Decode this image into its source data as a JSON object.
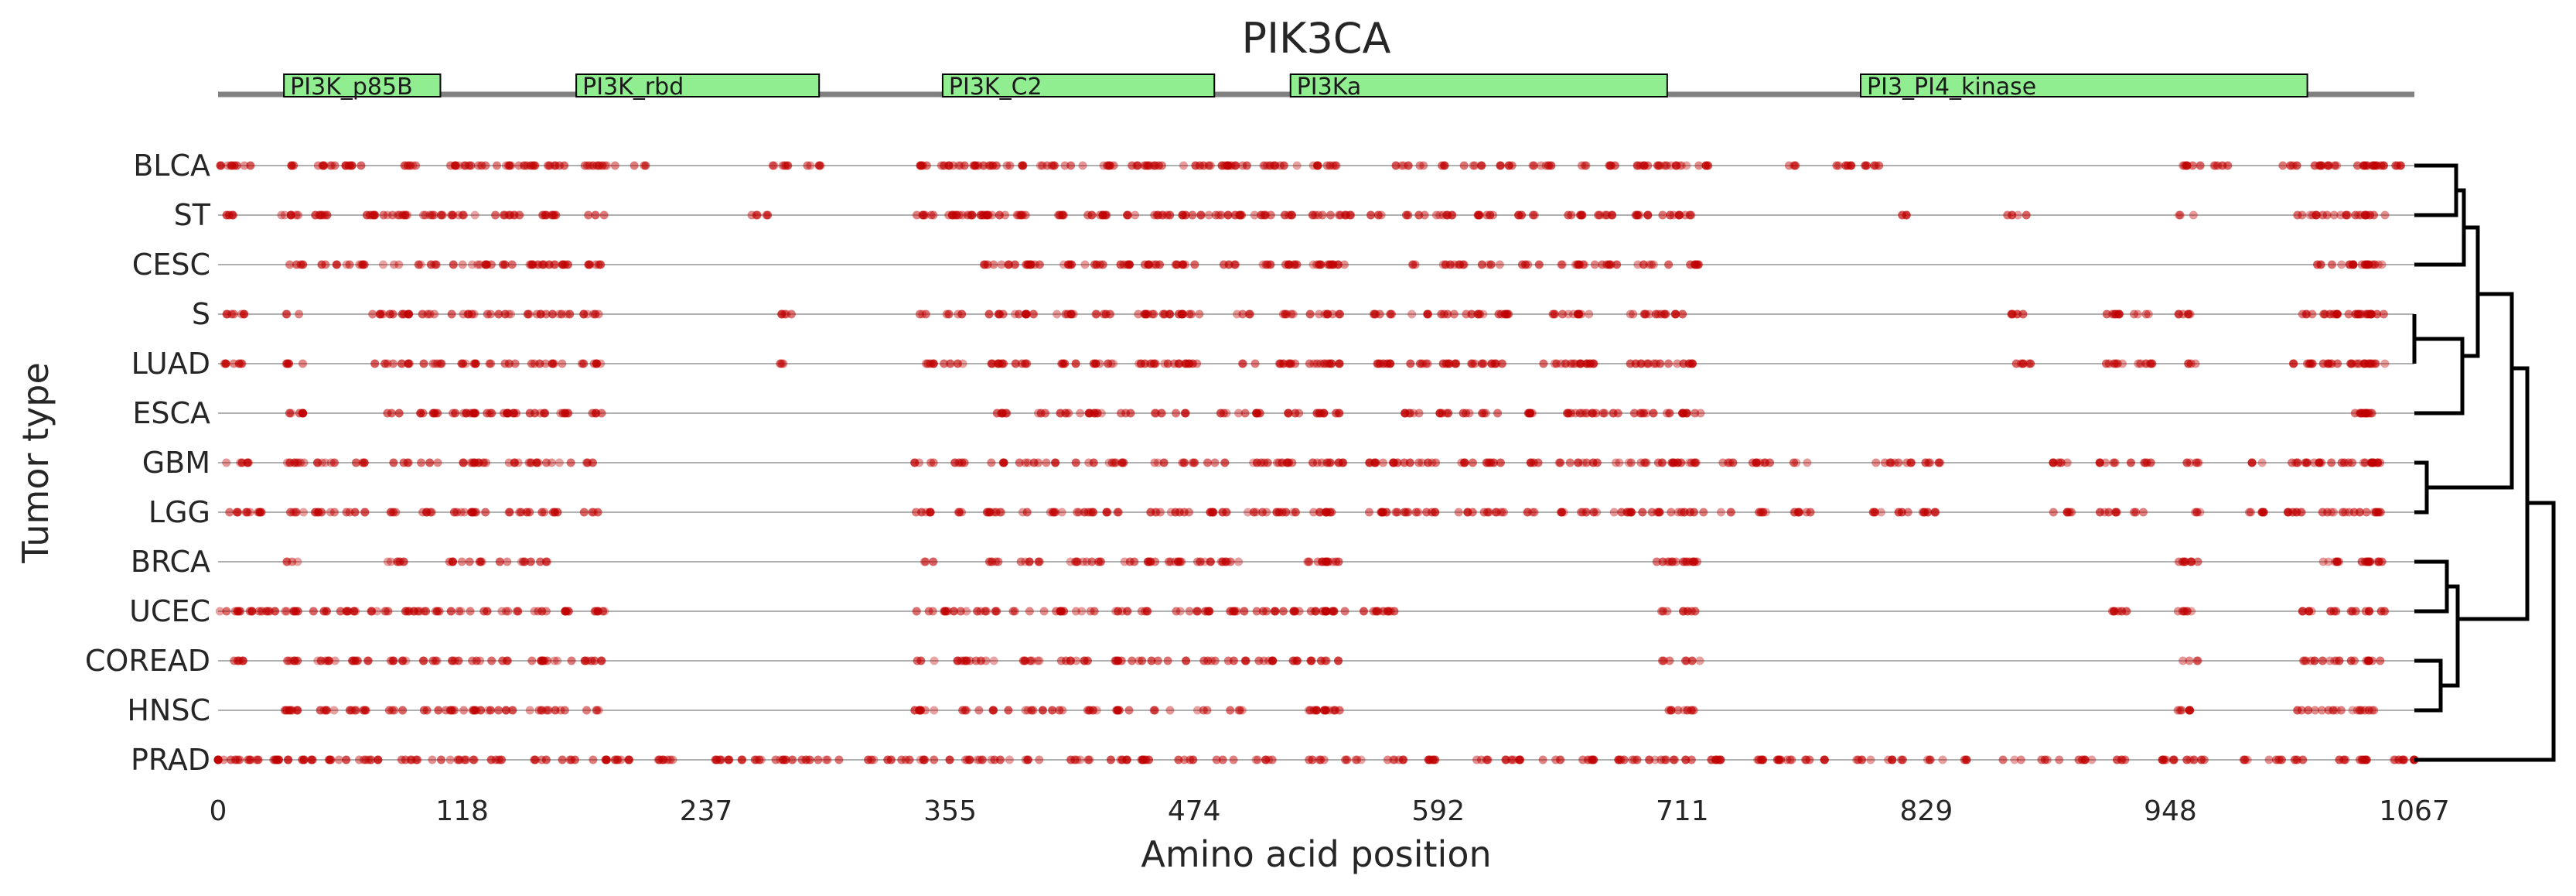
{
  "colors": {
    "mutation": "#c00000",
    "domain_fill": "#90ee90",
    "protein_track": "#808080",
    "row_line": "#b0b0b0",
    "dendrogram": "#000000"
  },
  "chart_data": {
    "type": "scatter",
    "title": "PIK3CA",
    "xlabel": "Amino acid position",
    "ylabel": "Tumor type",
    "xlim": [
      0,
      1067
    ],
    "xticks": [
      "0",
      "118",
      "237",
      "355",
      "474",
      "592",
      "711",
      "829",
      "948",
      "1067"
    ],
    "domains": [
      {
        "name": "PI3K_p85B",
        "start": 32,
        "end": 108
      },
      {
        "name": "PI3K_rbd",
        "start": 174,
        "end": 292
      },
      {
        "name": "PI3K_C2",
        "start": 352,
        "end": 484
      },
      {
        "name": "PI3Ka",
        "start": 521,
        "end": 704
      },
      {
        "name": "PI3_PI4_kinase",
        "start": 798,
        "end": 1015
      }
    ],
    "tumor_types": [
      "BLCA",
      "ST",
      "CESC",
      "S",
      "LUAD",
      "ESCA",
      "GBM",
      "LGG",
      "BRCA",
      "UCEC",
      "COREAD",
      "HNSC",
      "PRAD"
    ],
    "rows": [
      {
        "name": "BLCA",
        "hotspots": [
          3,
          12,
          37,
          52,
          66,
          93,
          115,
          125,
          138,
          151,
          164,
          182,
          189,
          205,
          272,
          290,
          343,
          356,
          363,
          374,
          387,
          403,
          416,
          432,
          447,
          455,
          474,
          486,
          495,
          512,
          520,
          537,
          544,
          572,
          581,
          596,
          610,
          624,
          643,
          660,
          677,
          690,
          704,
          710,
          720,
          765,
          790,
          803,
          958,
          972,
          1005,
          1017,
          1027,
          1043,
          1048,
          1056
        ]
      },
      {
        "name": "ST",
        "hotspots": [
          8,
          35,
          52,
          72,
          85,
          92,
          103,
          113,
          121,
          138,
          143,
          157,
          167,
          184,
          264,
          343,
          356,
          362,
          369,
          378,
          392,
          413,
          427,
          441,
          458,
          473,
          486,
          495,
          508,
          520,
          536,
          547,
          565,
          582,
          596,
          617,
          636,
          658,
          675,
          690,
          706,
          711,
          820,
          874,
          957,
          1015,
          1027,
          1038,
          1048
        ]
      },
      {
        "name": "CESC",
        "hotspots": [
          38,
          55,
          67,
          85,
          102,
          119,
          131,
          143,
          155,
          165,
          184,
          376,
          388,
          398,
          411,
          426,
          440,
          455,
          470,
          491,
          508,
          521,
          537,
          543,
          579,
          598,
          606,
          619,
          637,
          657,
          665,
          677,
          693,
          700,
          716,
          1022,
          1034,
          1042,
          1048
        ]
      },
      {
        "name": "S",
        "hotspots": [
          8,
          37,
          80,
          88,
          103,
          117,
          128,
          140,
          155,
          167,
          181,
          278,
          343,
          357,
          377,
          392,
          412,
          430,
          451,
          464,
          473,
          499,
          520,
          534,
          540,
          566,
          584,
          599,
          610,
          623,
          648,
          658,
          665,
          690,
          700,
          712,
          876,
          921,
          935,
          957,
          1013,
          1027,
          1038,
          1044,
          1048
        ]
      },
      {
        "name": "LUAD",
        "hotspots": [
          8,
          37,
          80,
          88,
          104,
          116,
          128,
          140,
          155,
          167,
          181,
          278,
          343,
          357,
          377,
          392,
          412,
          430,
          451,
          464,
          473,
          499,
          520,
          534,
          540,
          566,
          584,
          599,
          610,
          623,
          648,
          658,
          665,
          690,
          700,
          712,
          876,
          921,
          935,
          957,
          1013,
          1027,
          1038,
          1044,
          1048
        ]
      },
      {
        "name": "ESCA",
        "hotspots": [
          37,
          87,
          102,
          119,
          128,
          143,
          155,
          167,
          182,
          382,
          399,
          414,
          428,
          442,
          456,
          470,
          491,
          503,
          521,
          537,
          543,
          580,
          598,
          606,
          619,
          637,
          657,
          665,
          676,
          692,
          701,
          716,
          1042,
          1045,
          1048
        ]
      },
      {
        "name": "GBM",
        "hotspots": [
          8,
          17,
          37,
          52,
          67,
          88,
          102,
          119,
          128,
          143,
          155,
          167,
          181,
          343,
          361,
          378,
          394,
          406,
          421,
          436,
          458,
          470,
          485,
          505,
          519,
          536,
          542,
          564,
          575,
          587,
          605,
          620,
          637,
          656,
          665,
          683,
          696,
          706,
          717,
          731,
          750,
          770,
          808,
          818,
          832,
          896,
          918,
          934,
          959,
          990,
          1010,
          1023,
          1033,
          1045,
          1050
        ]
      },
      {
        "name": "LGG",
        "hotspots": [
          8,
          17,
          37,
          52,
          67,
          88,
          102,
          119,
          128,
          143,
          155,
          167,
          181,
          343,
          361,
          378,
          394,
          406,
          421,
          436,
          458,
          470,
          485,
          505,
          519,
          536,
          542,
          564,
          575,
          587,
          605,
          620,
          637,
          656,
          665,
          683,
          696,
          706,
          717,
          731,
          750,
          770,
          808,
          818,
          832,
          896,
          918,
          934,
          959,
          990,
          1010,
          1023,
          1033,
          1045,
          1050
        ]
      },
      {
        "name": "BRCA",
        "hotspots": [
          37,
          87,
          114,
          126,
          140,
          149,
          160,
          343,
          377,
          395,
          413,
          425,
          442,
          452,
          466,
          478,
          492,
          534,
          540,
          703,
          709,
          716,
          957,
          1027,
          1044,
          1048
        ]
      },
      {
        "name": "UCEC",
        "hotspots": [
          5,
          12,
          24,
          37,
          50,
          64,
          79,
          96,
          103,
          114,
          127,
          142,
          158,
          167,
          185,
          343,
          357,
          366,
          376,
          391,
          406,
          421,
          437,
          451,
          468,
          480,
          495,
          509,
          522,
          534,
          543,
          560,
          568,
          705,
          713,
          925,
          957,
          1015,
          1027,
          1040,
          1048
        ]
      },
      {
        "name": "COREAD",
        "hotspots": [
          10,
          37,
          52,
          69,
          87,
          102,
          118,
          128,
          140,
          156,
          167,
          183,
          343,
          361,
          373,
          395,
          410,
          420,
          440,
          452,
          466,
          480,
          495,
          509,
          521,
          534,
          542,
          705,
          715,
          957,
          1015,
          1027,
          1040,
          1048
        ]
      },
      {
        "name": "HNSC",
        "hotspots": [
          37,
          52,
          69,
          87,
          103,
          115,
          128,
          140,
          156,
          168,
          184,
          343,
          365,
          381,
          396,
          410,
          427,
          441,
          459,
          476,
          493,
          534,
          540,
          705,
          715,
          957,
          1015,
          1027,
          1040,
          1048
        ]
      },
      {
        "name": "PRAD",
        "hotspots": [
          2,
          12,
          23,
          30,
          42,
          58,
          73,
          92,
          109,
          120,
          136,
          155,
          172,
          184,
          197,
          218,
          246,
          259,
          275,
          288,
          298,
          316,
          330,
          340,
          351,
          368,
          380,
          397,
          419,
          437,
          452,
          470,
          490,
          508,
          533,
          551,
          572,
          592,
          612,
          629,
          648,
          664,
          685,
          700,
          711,
          729,
          750,
          762,
          776,
          800,
          815,
          834,
          851,
          872,
          890,
          907,
          925,
          947,
          961,
          982,
          998,
          1013,
          1029,
          1043,
          1058,
          1066
        ]
      }
    ],
    "grid": false
  }
}
